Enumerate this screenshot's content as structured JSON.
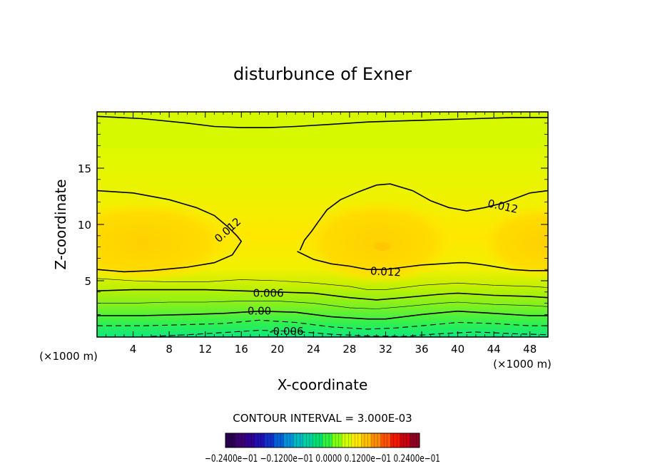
{
  "chart_data": {
    "type": "heatmap",
    "title": "disturbunce of Exner",
    "xlabel": "X-coordinate",
    "ylabel": "Z-coordinate",
    "x_unit_left": "(×1000 m)",
    "x_unit_right": "(×1000 m)",
    "xlim": [
      0,
      50
    ],
    "ylim": [
      0,
      20
    ],
    "x_ticks": [
      4,
      8,
      12,
      16,
      20,
      24,
      28,
      32,
      36,
      40,
      44,
      48
    ],
    "x_tick_labels": [
      "4",
      "8",
      "12",
      "16",
      "20",
      "24",
      "28",
      "32",
      "36",
      "40",
      "44",
      "48"
    ],
    "y_ticks": [
      5,
      10,
      15
    ],
    "y_tick_labels": [
      "5",
      "10",
      "15"
    ],
    "contour_interval_text": "CONTOUR INTERVAL = 3.000E-03",
    "contour_interval": 0.003,
    "contour_labels": [
      {
        "text": "0.012",
        "x": 14.5,
        "y": 9.5,
        "angle": 42
      },
      {
        "text": "0.012",
        "x": 45.0,
        "y": 11.6,
        "angle": -12
      },
      {
        "text": "0.012",
        "x": 32.0,
        "y": 5.8,
        "angle": -3
      },
      {
        "text": "0.006",
        "x": 19.0,
        "y": 3.9,
        "angle": 0
      },
      {
        "text": "0.00",
        "x": 18.0,
        "y": 2.3,
        "angle": 0
      },
      {
        "text": "-0.006",
        "x": 21.0,
        "y": 0.5,
        "angle": 0
      }
    ],
    "solid_contours": [
      {
        "level": 0.012,
        "name": "upper",
        "points": [
          [
            0,
            13.0
          ],
          [
            4,
            12.8
          ],
          [
            8,
            12.2
          ],
          [
            11,
            11.5
          ],
          [
            13,
            10.8
          ],
          [
            14.5,
            9.8
          ],
          [
            15.5,
            9.0
          ],
          [
            16,
            8.5
          ],
          [
            15,
            7.3
          ],
          [
            13,
            6.6
          ],
          [
            10,
            6.2
          ],
          [
            6,
            5.9
          ],
          [
            3,
            5.8
          ],
          [
            0,
            6.0
          ]
        ]
      },
      {
        "level": 0.012,
        "name": "right",
        "points": [
          [
            22.5,
            7.7
          ],
          [
            23,
            8.6
          ],
          [
            23.8,
            9.4
          ],
          [
            24.5,
            10.2
          ],
          [
            25.5,
            11.3
          ],
          [
            27,
            12.2
          ],
          [
            29,
            12.9
          ],
          [
            31,
            13.5
          ],
          [
            32.5,
            13.6
          ],
          [
            35,
            13.0
          ],
          [
            37,
            12.1
          ],
          [
            39,
            11.5
          ],
          [
            41,
            11.2
          ],
          [
            43,
            11.5
          ],
          [
            45,
            11.9
          ],
          [
            48,
            12.8
          ],
          [
            50,
            13.0
          ]
        ]
      },
      {
        "level": 0.012,
        "name": "lower",
        "points": [
          [
            22.2,
            7.6
          ],
          [
            24,
            6.9
          ],
          [
            26,
            6.5
          ],
          [
            28,
            6.3
          ],
          [
            30,
            6.0
          ],
          [
            32,
            6.0
          ],
          [
            34,
            6.2
          ],
          [
            36,
            6.4
          ],
          [
            38,
            6.5
          ],
          [
            40,
            6.6
          ],
          [
            41,
            6.6
          ],
          [
            43,
            6.4
          ],
          [
            46,
            6.0
          ],
          [
            48,
            5.9
          ],
          [
            50,
            5.9
          ]
        ]
      },
      {
        "level": 0.018,
        "name": "top",
        "points": [
          [
            0,
            19.6
          ],
          [
            5,
            19.4
          ],
          [
            10,
            19.0
          ],
          [
            13,
            18.7
          ],
          [
            16,
            18.6
          ],
          [
            19,
            18.6
          ],
          [
            22,
            18.7
          ],
          [
            26,
            18.9
          ],
          [
            30,
            19.1
          ],
          [
            34,
            19.2
          ],
          [
            38,
            19.3
          ],
          [
            42,
            19.4
          ],
          [
            46,
            19.5
          ],
          [
            50,
            19.5
          ]
        ]
      },
      {
        "level": 0.006,
        "name": "c006",
        "points": [
          [
            0,
            4.1
          ],
          [
            4,
            4.2
          ],
          [
            8,
            4.2
          ],
          [
            12,
            4.2
          ],
          [
            16,
            4.1
          ],
          [
            20,
            4.0
          ],
          [
            24,
            3.9
          ],
          [
            28,
            3.5
          ],
          [
            31,
            3.3
          ],
          [
            34,
            3.5
          ],
          [
            38,
            3.8
          ],
          [
            40,
            3.9
          ],
          [
            44,
            3.7
          ],
          [
            48,
            3.6
          ],
          [
            50,
            3.5
          ]
        ]
      },
      {
        "level": 0.0,
        "name": "c000",
        "points": [
          [
            0,
            1.9
          ],
          [
            5,
            1.9
          ],
          [
            10,
            2.0
          ],
          [
            14,
            2.1
          ],
          [
            18,
            2.3
          ],
          [
            22,
            2.2
          ],
          [
            26,
            1.8
          ],
          [
            30,
            1.6
          ],
          [
            32,
            1.6
          ],
          [
            36,
            2.0
          ],
          [
            40,
            2.3
          ],
          [
            44,
            2.1
          ],
          [
            48,
            1.9
          ],
          [
            50,
            1.9
          ]
        ]
      }
    ],
    "thin_contours": [
      {
        "level": 0.009,
        "points": [
          [
            0,
            5.2
          ],
          [
            4,
            5.0
          ],
          [
            8,
            4.9
          ],
          [
            12,
            4.9
          ],
          [
            16,
            5.1
          ],
          [
            20,
            5.0
          ],
          [
            24,
            4.8
          ],
          [
            28,
            4.5
          ],
          [
            30,
            4.2
          ],
          [
            32,
            4.2
          ],
          [
            36,
            4.6
          ],
          [
            40,
            4.8
          ],
          [
            44,
            4.6
          ],
          [
            48,
            4.5
          ],
          [
            50,
            4.4
          ]
        ]
      },
      {
        "level": 0.003,
        "points": [
          [
            0,
            3.0
          ],
          [
            4,
            3.0
          ],
          [
            8,
            3.1
          ],
          [
            12,
            3.1
          ],
          [
            16,
            3.2
          ],
          [
            20,
            3.2
          ],
          [
            24,
            3.0
          ],
          [
            28,
            2.6
          ],
          [
            31,
            2.5
          ],
          [
            34,
            2.7
          ],
          [
            38,
            3.0
          ],
          [
            40,
            3.1
          ],
          [
            44,
            2.9
          ],
          [
            48,
            2.8
          ],
          [
            50,
            2.7
          ]
        ]
      }
    ],
    "dashed_contours": [
      {
        "level": -0.003,
        "points": [
          [
            0,
            1.0
          ],
          [
            5,
            1.0
          ],
          [
            10,
            1.1
          ],
          [
            14,
            1.2
          ],
          [
            18,
            1.5
          ],
          [
            22,
            1.3
          ],
          [
            26,
            0.9
          ],
          [
            30,
            0.7
          ],
          [
            33,
            0.8
          ],
          [
            36,
            1.0
          ],
          [
            40,
            1.3
          ],
          [
            44,
            1.2
          ],
          [
            48,
            1.0
          ],
          [
            50,
            1.0
          ]
        ]
      },
      {
        "level": -0.006,
        "points": [
          [
            6,
            0.05
          ],
          [
            10,
            0.2
          ],
          [
            14,
            0.4
          ],
          [
            18,
            0.6
          ],
          [
            22,
            0.5
          ],
          [
            26,
            0.25
          ],
          [
            30,
            0.1
          ],
          [
            34,
            0.05
          ],
          [
            38,
            0.3
          ],
          [
            42,
            0.45
          ],
          [
            46,
            0.3
          ],
          [
            50,
            0.2
          ]
        ]
      }
    ],
    "colorbar": {
      "min": -0.024,
      "max": 0.024,
      "labels_text": "−0.2400e−01  −0.1200e−01  0.0000  0.1200e−01  0.2400e−01",
      "colors": [
        "#2a0050",
        "#3a0070",
        "#300090",
        "#2010b0",
        "#1030c8",
        "#0060d8",
        "#0090d8",
        "#00b8c0",
        "#00d0a0",
        "#00e070",
        "#30f040",
        "#80ff10",
        "#d0ff00",
        "#ffe800",
        "#ffc000",
        "#ff8c00",
        "#ff5000",
        "#f01800",
        "#c80010",
        "#900020"
      ]
    }
  }
}
